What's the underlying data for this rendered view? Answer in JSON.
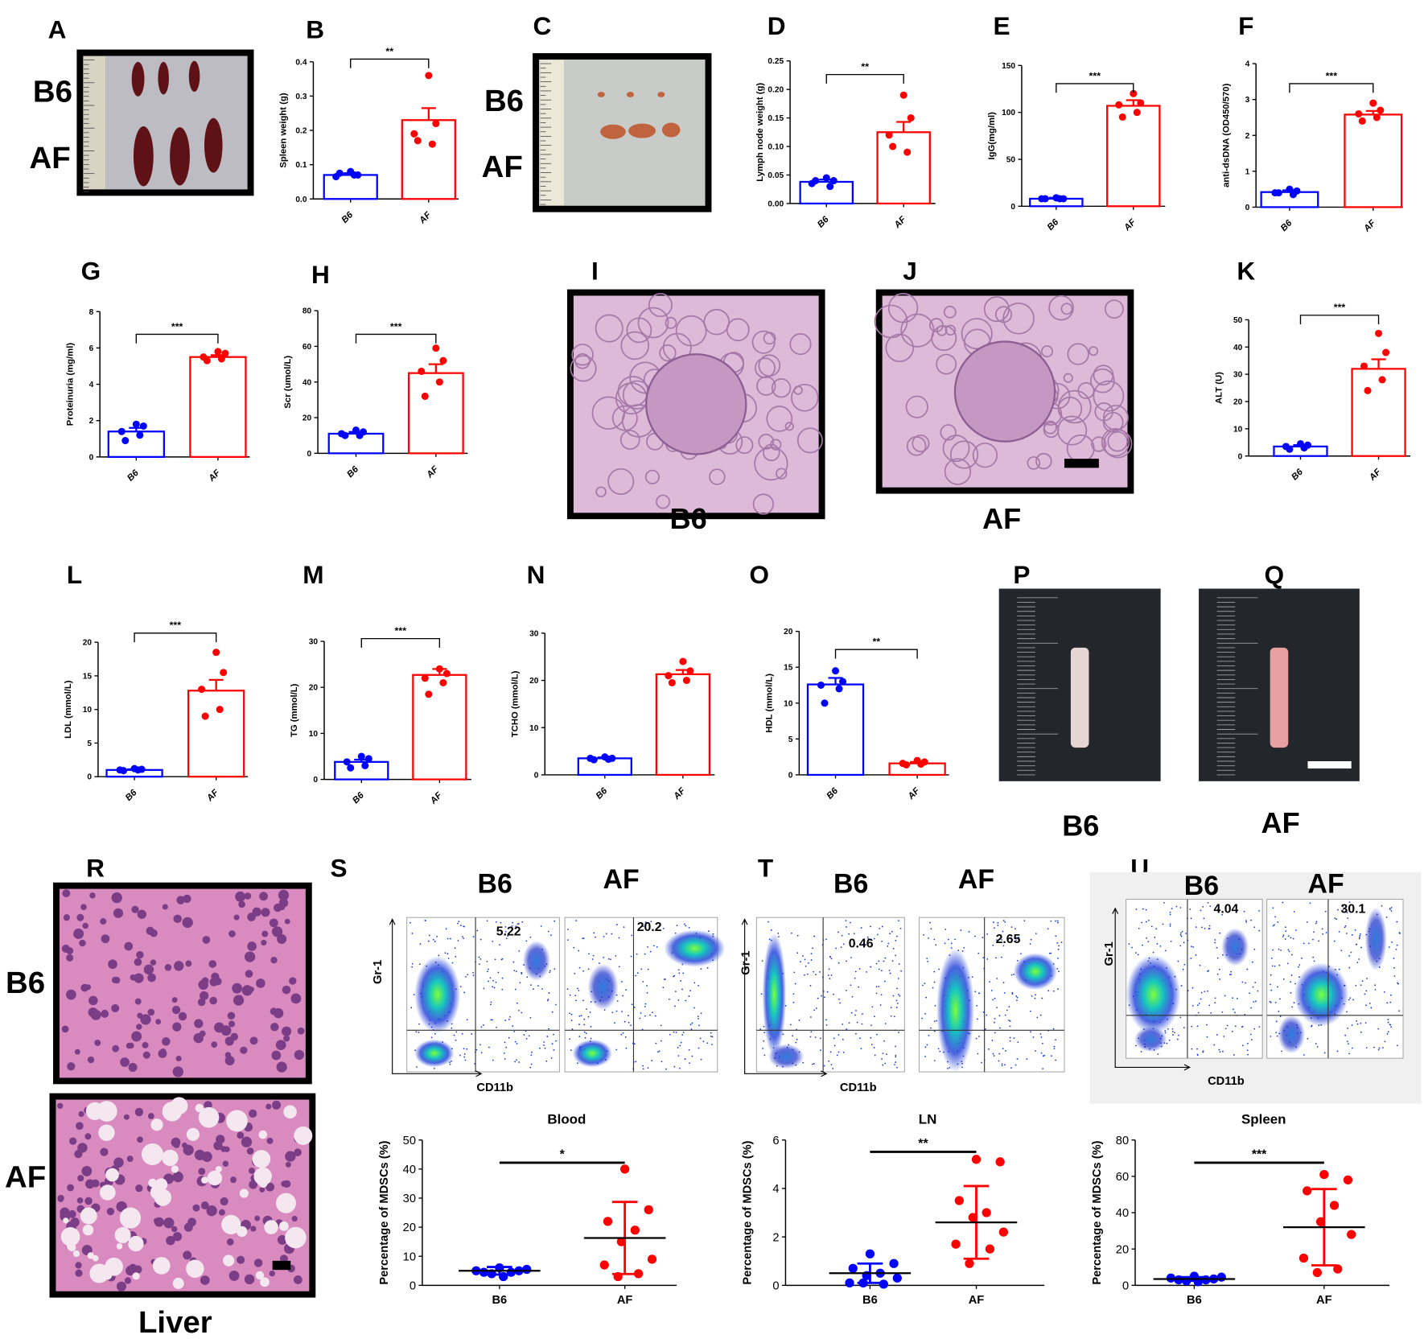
{
  "chart_data": [
    {
      "type": "bar",
      "panel": "B",
      "y_label": "Spleen weight (g)",
      "categories": [
        "B6",
        "AF"
      ],
      "colors": [
        "#0000ff",
        "#ff0000"
      ],
      "values": [
        0.07,
        0.23
      ],
      "errors": [
        0.005,
        0.035
      ],
      "points": [
        [
          0.08,
          0.07,
          0.065,
          0.07,
          0.075
        ],
        [
          0.36,
          0.22,
          0.19,
          0.16,
          0.17
        ]
      ],
      "ylim": [
        0,
        0.4
      ],
      "yticks": [
        {
          "value": 0,
          "label": "0.0"
        },
        0.1,
        0.2,
        0.3,
        0.4
      ],
      "significance": "**"
    },
    {
      "type": "bar",
      "panel": "D",
      "y_label": "Lymph node weight (g)",
      "categories": [
        "B6",
        "AF"
      ],
      "colors": [
        "#0000ff",
        "#ff0000"
      ],
      "values": [
        0.038,
        0.125
      ],
      "errors": [
        0.004,
        0.018
      ],
      "points": [
        [
          0.045,
          0.04,
          0.035,
          0.03,
          0.04
        ],
        [
          0.19,
          0.15,
          0.12,
          0.09,
          0.1
        ]
      ],
      "ylim": [
        0,
        0.25
      ],
      "yticks": [
        {
          "value": 0,
          "label": "0.00"
        },
        0.05,
        {
          "value": 0.1,
          "label": "0.10"
        },
        0.15,
        {
          "value": 0.2,
          "label": "0.20"
        },
        0.25
      ],
      "significance": "**"
    },
    {
      "type": "bar",
      "panel": "E",
      "y_label": "IgG(mg/ml)",
      "categories": [
        "B6",
        "AF"
      ],
      "colors": [
        "#0000ff",
        "#ff0000"
      ],
      "values": [
        8,
        107
      ],
      "errors": [
        1,
        6
      ],
      "points": [
        [
          9,
          8,
          8,
          8,
          8
        ],
        [
          120,
          110,
          108,
          100,
          95
        ]
      ],
      "ylim": [
        0,
        150
      ],
      "yticks": [
        0,
        50,
        100,
        150
      ],
      "significance": "***"
    },
    {
      "type": "bar",
      "panel": "F",
      "y_label": "anti-dsDNA (OD450/570)",
      "categories": [
        "B6",
        "AF"
      ],
      "colors": [
        "#0000ff",
        "#ff0000"
      ],
      "values": [
        0.42,
        2.58
      ],
      "errors": [
        0.05,
        0.1
      ],
      "points": [
        [
          0.5,
          0.45,
          0.4,
          0.35,
          0.4
        ],
        [
          2.9,
          2.7,
          2.6,
          2.5,
          2.4
        ]
      ],
      "ylim": [
        0,
        4
      ],
      "yticks": [
        0,
        1,
        2,
        3,
        4
      ],
      "significance": "***"
    },
    {
      "type": "bar",
      "panel": "G",
      "y_label": "Proteinuria (mg/ml)",
      "categories": [
        "B6",
        "AF"
      ],
      "colors": [
        "#0000ff",
        "#ff0000"
      ],
      "values": [
        1.4,
        5.5
      ],
      "errors": [
        0.2,
        0.1
      ],
      "points": [
        [
          1.8,
          1.7,
          1.4,
          1.2,
          0.9
        ],
        [
          5.8,
          5.7,
          5.5,
          5.4,
          5.3
        ]
      ],
      "ylim": [
        0,
        8
      ],
      "yticks": [
        0,
        2,
        4,
        6,
        8
      ],
      "significance": "***"
    },
    {
      "type": "bar",
      "panel": "H",
      "y_label": "Scr (umol/L)",
      "categories": [
        "B6",
        "AF"
      ],
      "colors": [
        "#0000ff",
        "#ff0000"
      ],
      "values": [
        11,
        45
      ],
      "errors": [
        1,
        5
      ],
      "points": [
        [
          13,
          12,
          11,
          10,
          10
        ],
        [
          59,
          52,
          46,
          40,
          32
        ]
      ],
      "ylim": [
        0,
        80
      ],
      "yticks": [
        0,
        20,
        40,
        60,
        80
      ],
      "significance": "***"
    },
    {
      "type": "bar",
      "panel": "K",
      "y_label": "ALT (U)",
      "categories": [
        "B6",
        "AF"
      ],
      "colors": [
        "#0000ff",
        "#ff0000"
      ],
      "values": [
        3.5,
        32
      ],
      "errors": [
        0.5,
        3.5
      ],
      "points": [
        [
          4.5,
          4,
          3.5,
          3,
          2.5
        ],
        [
          45,
          38,
          33,
          28,
          24
        ]
      ],
      "ylim": [
        0,
        50
      ],
      "yticks": [
        0,
        10,
        20,
        30,
        40,
        50
      ],
      "significance": "***"
    },
    {
      "type": "bar",
      "panel": "L",
      "y_label": "LDL (mmol/L)",
      "categories": [
        "B6",
        "AF"
      ],
      "colors": [
        "#0000ff",
        "#ff0000"
      ],
      "values": [
        1,
        12.8
      ],
      "errors": [
        0.1,
        1.6
      ],
      "points": [
        [
          1.2,
          1.1,
          1,
          1,
          0.9
        ],
        [
          18.5,
          15.5,
          13,
          10,
          9
        ]
      ],
      "ylim": [
        0,
        20
      ],
      "yticks": [
        0,
        5,
        10,
        15,
        20
      ],
      "significance": "***"
    },
    {
      "type": "bar",
      "panel": "M",
      "y_label": "TG (mmol/L)",
      "categories": [
        "B6",
        "AF"
      ],
      "colors": [
        "#0000ff",
        "#ff0000"
      ],
      "values": [
        3.8,
        22.7
      ],
      "errors": [
        0.5,
        1.3
      ],
      "points": [
        [
          5,
          4.5,
          3.8,
          3,
          2.5
        ],
        [
          24,
          23,
          22,
          21,
          18.5
        ]
      ],
      "ylim": [
        0,
        30
      ],
      "yticks": [
        0,
        10,
        20,
        30
      ],
      "significance": "***"
    },
    {
      "type": "bar",
      "panel": "N",
      "y_label": "TCHO (mmol/L)",
      "categories": [
        "B6",
        "AF"
      ],
      "colors": [
        "#0000ff",
        "#ff0000"
      ],
      "values": [
        3.5,
        21.3
      ],
      "errors": [
        0.2,
        0.9
      ],
      "points": [
        [
          3.8,
          3.5,
          3.5,
          3.3,
          3.2
        ],
        [
          24,
          22,
          21,
          20,
          19.5
        ]
      ],
      "ylim": [
        0,
        30
      ],
      "yticks": [
        0,
        10,
        20,
        30
      ]
    },
    {
      "type": "bar",
      "panel": "O",
      "y_label": "HDL (mmol/L)",
      "categories": [
        "B6",
        "AF"
      ],
      "colors": [
        "#0000ff",
        "#ff0000"
      ],
      "values": [
        12.6,
        1.6
      ],
      "errors": [
        0.9,
        0.2
      ],
      "points": [
        [
          14.5,
          13,
          12.5,
          12,
          10
        ],
        [
          2,
          1.8,
          1.6,
          1.5,
          1.4
        ]
      ],
      "ylim": [
        0,
        20
      ],
      "yticks": [
        0,
        5,
        10,
        15,
        20
      ],
      "significance": "**"
    },
    {
      "type": "dot",
      "title": "Blood",
      "y_label": "Percentage of MDSCs (%)",
      "categories": [
        "B6",
        "AF"
      ],
      "colors": [
        "#0000ff",
        "#ff0000"
      ],
      "values": [
        5,
        16.3
      ],
      "errors": [
        1.3,
        12.4
      ],
      "points": [
        [
          6,
          5.5,
          5,
          5,
          4.5,
          4.5,
          4,
          3
        ],
        [
          40,
          26,
          22,
          19,
          15,
          9,
          7,
          4,
          3
        ]
      ],
      "ylim": [
        0,
        50
      ],
      "yticks": [
        0,
        10,
        20,
        30,
        40,
        50
      ],
      "significance": "*"
    },
    {
      "type": "dot",
      "title": "LN",
      "y_label": "Percentage of MDSCs (%)",
      "categories": [
        "B6",
        "AF"
      ],
      "colors": [
        "#0000ff",
        "#ff0000"
      ],
      "values": [
        0.5,
        2.6
      ],
      "errors": [
        0.4,
        1.5
      ],
      "points": [
        [
          1.3,
          0.9,
          0.7,
          0.5,
          0.4,
          0.3,
          0.1,
          0.05,
          0.1
        ],
        [
          5.2,
          5.1,
          3.5,
          3,
          2.8,
          2.2,
          1.7,
          1.5,
          0.9
        ]
      ],
      "ylim": [
        0,
        6
      ],
      "yticks": [
        0,
        2,
        4,
        6
      ],
      "significance": "**"
    },
    {
      "type": "dot",
      "title": "Spleen",
      "y_label": "Percentage of MDSCs (%)",
      "categories": [
        "B6",
        "AF"
      ],
      "colors": [
        "#0000ff",
        "#ff0000"
      ],
      "values": [
        3.5,
        32
      ],
      "errors": [
        1,
        21
      ],
      "points": [
        [
          5,
          4.5,
          4,
          3.5,
          3,
          3,
          2.5,
          2
        ],
        [
          61,
          58,
          52,
          44,
          35,
          28,
          15,
          9,
          7
        ]
      ],
      "ylim": [
        0,
        80
      ],
      "yticks": [
        0,
        20,
        40,
        60,
        80
      ],
      "significance": "***"
    }
  ],
  "figure_panels": [
    {
      "letter": "A",
      "labels": [
        "B6",
        "AF"
      ]
    },
    {
      "letter": "C",
      "labels": [
        "B6",
        "AF"
      ]
    },
    {
      "letter": "I",
      "labels": [
        "B6"
      ]
    },
    {
      "letter": "J",
      "labels": [
        "AF"
      ]
    },
    {
      "letter": "P",
      "labels": [
        "B6"
      ]
    },
    {
      "letter": "Q",
      "labels": [
        "AF"
      ]
    },
    {
      "letter": "R",
      "labels": [
        "B6",
        "AF",
        "Liver"
      ]
    },
    {
      "letter": "S",
      "labels": [
        "B6",
        "AF"
      ],
      "gates": [
        5.22,
        20.2
      ],
      "y_axis": "Gr-1",
      "x_axis": "CD11b"
    },
    {
      "letter": "T",
      "labels": [
        "B6",
        "AF"
      ],
      "gates": [
        0.46,
        2.65
      ],
      "y_axis": "Gr-1",
      "x_axis": "CD11b"
    },
    {
      "letter": "U",
      "labels": [
        "B6",
        "AF"
      ],
      "gates": [
        4.04,
        30.1
      ],
      "y_axis": "Gr-1",
      "x_axis": "CD11b"
    }
  ]
}
